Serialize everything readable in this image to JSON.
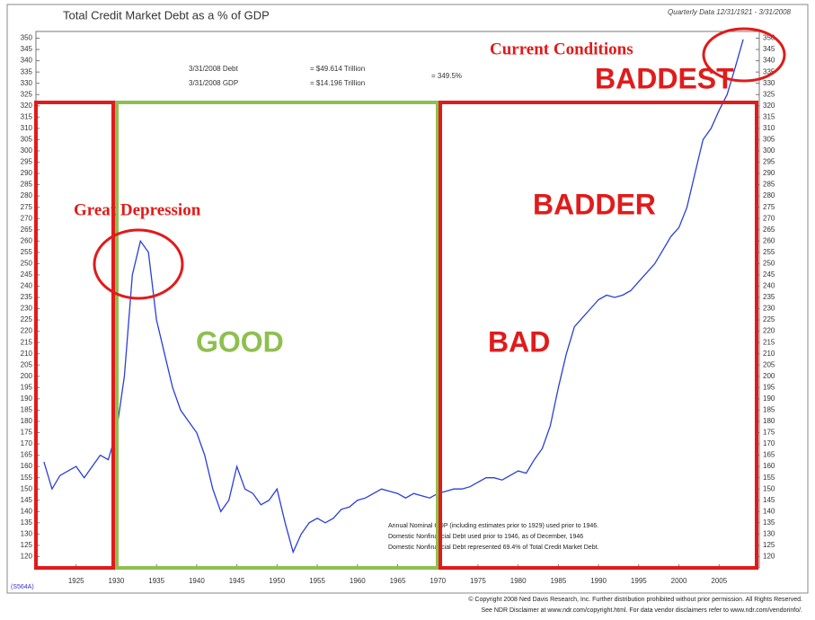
{
  "chart_data": {
    "type": "line",
    "title": "Total Credit Market Debt as a % of GDP",
    "subtitle": "Quarterly Data 12/31/1921 - 3/31/2008",
    "x": [
      1921,
      1922,
      1923,
      1924,
      1925,
      1926,
      1927,
      1928,
      1929,
      1930,
      1931,
      1932,
      1933,
      1934,
      1935,
      1936,
      1937,
      1938,
      1939,
      1940,
      1941,
      1942,
      1943,
      1944,
      1945,
      1946,
      1947,
      1948,
      1949,
      1950,
      1951,
      1952,
      1953,
      1954,
      1955,
      1956,
      1957,
      1958,
      1959,
      1960,
      1961,
      1962,
      1963,
      1964,
      1965,
      1966,
      1967,
      1968,
      1969,
      1970,
      1971,
      1972,
      1973,
      1974,
      1975,
      1976,
      1977,
      1978,
      1979,
      1980,
      1981,
      1982,
      1983,
      1984,
      1985,
      1986,
      1987,
      1988,
      1989,
      1990,
      1991,
      1992,
      1993,
      1994,
      1995,
      1996,
      1997,
      1998,
      1999,
      2000,
      2001,
      2002,
      2003,
      2004,
      2005,
      2006,
      2007,
      2008
    ],
    "values": [
      162,
      150,
      156,
      158,
      160,
      155,
      160,
      165,
      163,
      175,
      200,
      245,
      260,
      255,
      225,
      210,
      195,
      185,
      180,
      175,
      165,
      150,
      140,
      145,
      160,
      150,
      148,
      143,
      145,
      150,
      135,
      122,
      130,
      135,
      137,
      135,
      137,
      141,
      142,
      145,
      146,
      148,
      150,
      149,
      148,
      146,
      148,
      147,
      146,
      148,
      149,
      150,
      150,
      151,
      153,
      155,
      155,
      154,
      156,
      158,
      157,
      163,
      168,
      178,
      195,
      210,
      222,
      226,
      230,
      234,
      236,
      235,
      236,
      238,
      242,
      246,
      250,
      256,
      262,
      266,
      275,
      290,
      305,
      310,
      318,
      325,
      337,
      349.5
    ],
    "color": "#2a3fd6",
    "xlim": [
      1920,
      2010
    ],
    "xticks": [
      1925,
      1930,
      1935,
      1940,
      1945,
      1950,
      1955,
      1960,
      1965,
      1970,
      1975,
      1980,
      1985,
      1990,
      1995,
      2000,
      2005
    ],
    "ylim": [
      115,
      353
    ],
    "yticks": [
      120,
      125,
      130,
      135,
      140,
      145,
      150,
      155,
      160,
      165,
      170,
      175,
      180,
      185,
      190,
      195,
      200,
      205,
      210,
      215,
      220,
      225,
      230,
      235,
      240,
      245,
      250,
      255,
      260,
      265,
      270,
      275,
      280,
      285,
      290,
      295,
      300,
      305,
      310,
      315,
      320,
      325,
      330,
      335,
      340,
      345,
      350
    ],
    "info": [
      "3/31/2008 Debt",
      "= $49.614 Trillion",
      "3/31/2008 GDP",
      "= $14.196 Trillion",
      "= 349.5%"
    ],
    "annotations": [
      "Current Conditions",
      "BADDEST",
      "Great Depression",
      "GOOD",
      "BAD",
      "BADDER"
    ],
    "notes": [
      "Annual Nominal GDP (including estimates prior to 1929) used prior to 1946.",
      "Domestic Nonfinancial Debt used prior to 1946, as of December, 1946",
      "Domestic Nonfinancial Debt represented 69.4% of Total Credit Market Debt."
    ],
    "code": "(S564A)",
    "footer": [
      "© Copyright 2008 Ned Davis Research, Inc. Further distribution prohibited without prior permission. All Rights Reserved.",
      "See NDR Disclaimer at www.ndr.com/copyright.html. For data vendor disclaimers refer to www.ndr.com/vendorinfo/."
    ]
  }
}
